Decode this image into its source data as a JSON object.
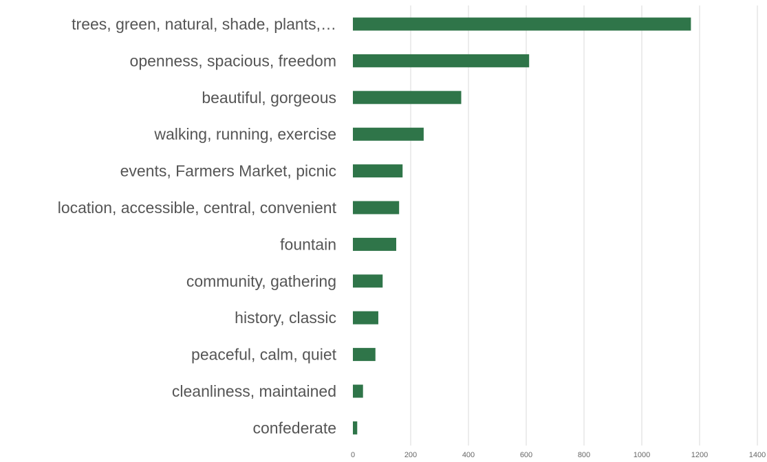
{
  "chart_data": {
    "type": "bar",
    "orientation": "horizontal",
    "categories": [
      "trees, green, natural, shade, plants,…",
      "openness, spacious, freedom",
      "beautiful, gorgeous",
      "walking, running, exercise",
      "events, Farmers Market, picnic",
      "location, accessible, central, convenient",
      "fountain",
      "community, gathering",
      "history, classic",
      "peaceful, calm, quiet",
      "cleanliness, maintained",
      "confederate"
    ],
    "values": [
      1170,
      610,
      375,
      245,
      172,
      160,
      150,
      103,
      88,
      78,
      35,
      15
    ],
    "xlim": [
      0,
      1400
    ],
    "xticks": [
      0,
      200,
      400,
      600,
      800,
      1000,
      1200,
      1400
    ],
    "grid": true,
    "legend": "none",
    "bar_color": "#2f7549",
    "title": "",
    "xlabel": "",
    "ylabel": ""
  }
}
